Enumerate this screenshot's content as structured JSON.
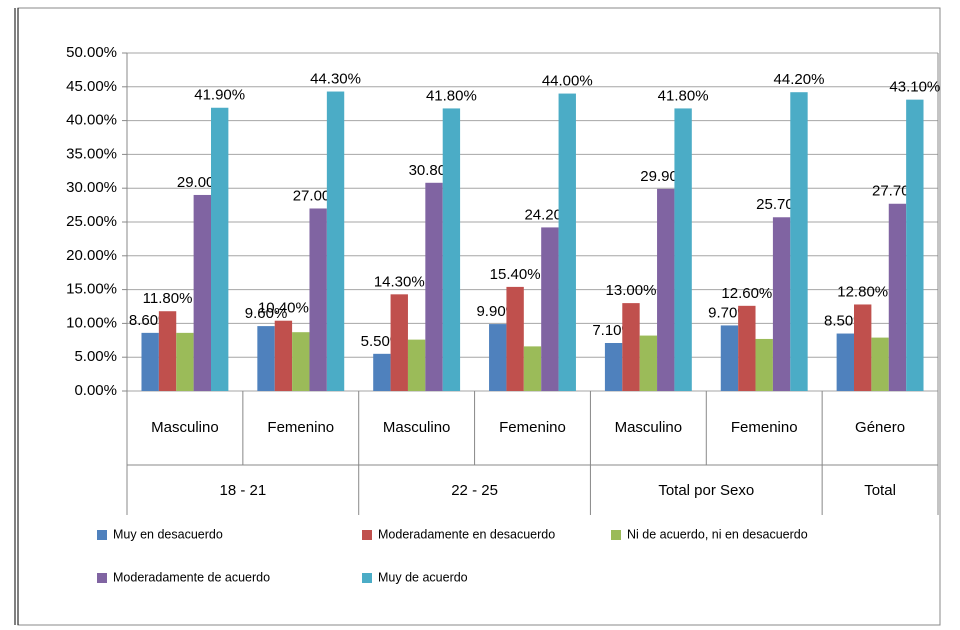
{
  "chart_data": {
    "type": "bar",
    "categories": [
      "Masculino",
      "Femenino",
      "Masculino",
      "Femenino",
      "Masculino",
      "Femenino",
      "Género"
    ],
    "groups": [
      {
        "label": "18 - 21",
        "span": 2
      },
      {
        "label": "22 - 25",
        "span": 2
      },
      {
        "label": "Total por Sexo",
        "span": 2
      },
      {
        "label": "Total",
        "span": 1
      }
    ],
    "series": [
      {
        "name": "Muy en desacuerdo",
        "color": "#4f81bd",
        "values": [
          8.6,
          9.6,
          5.5,
          9.9,
          7.1,
          9.7,
          8.5
        ],
        "value_labels": [
          "8.60%",
          "9.60%",
          "5.50%",
          "9.90%",
          "7.10%",
          "9.70%",
          "8.50%"
        ]
      },
      {
        "name": "Moderadamente en desacuerdo",
        "color": "#c0504d",
        "values": [
          11.8,
          10.4,
          14.3,
          15.4,
          13.0,
          12.6,
          12.8
        ],
        "value_labels": [
          "11.80%",
          "10.40%",
          "14.30%",
          "15.40%",
          "13.00%",
          "12.60%",
          "12.80%"
        ]
      },
      {
        "name": "Ni de acuerdo, ni en desacuerdo",
        "color": "#9bbb59",
        "values": [
          8.6,
          8.7,
          7.6,
          6.6,
          8.2,
          7.7,
          7.9
        ]
      },
      {
        "name": "Moderadamente de acuerdo",
        "color": "#8064a2",
        "values": [
          29.0,
          27.0,
          30.8,
          24.2,
          29.9,
          25.7,
          27.7
        ],
        "value_labels": [
          "29.00%",
          "27.00%",
          "30.80%",
          "24.20%",
          "29.90%",
          "25.70%",
          "27.70%"
        ]
      },
      {
        "name": "Muy de acuerdo",
        "color": "#4bacc6",
        "values": [
          41.9,
          44.3,
          41.8,
          44.0,
          41.8,
          44.2,
          43.1
        ],
        "value_labels": [
          "41.90%",
          "44.30%",
          "41.80%",
          "44.00%",
          "41.80%",
          "44.20%",
          "43.10%"
        ]
      }
    ],
    "ylim": [
      0,
      50
    ],
    "yticks": [
      {
        "value": 0,
        "label": "0.00%"
      },
      {
        "value": 5,
        "label": "5.00%"
      },
      {
        "value": 10,
        "label": "10.00%"
      },
      {
        "value": 15,
        "label": "15.00%"
      },
      {
        "value": 20,
        "label": "20.00%"
      },
      {
        "value": 25,
        "label": "25.00%"
      },
      {
        "value": 30,
        "label": "30.00%"
      },
      {
        "value": 35,
        "label": "35.00%"
      },
      {
        "value": 40,
        "label": "40.00%"
      },
      {
        "value": 45,
        "label": "45.00%"
      },
      {
        "value": 50,
        "label": "50.00%"
      }
    ],
    "grid": true
  }
}
